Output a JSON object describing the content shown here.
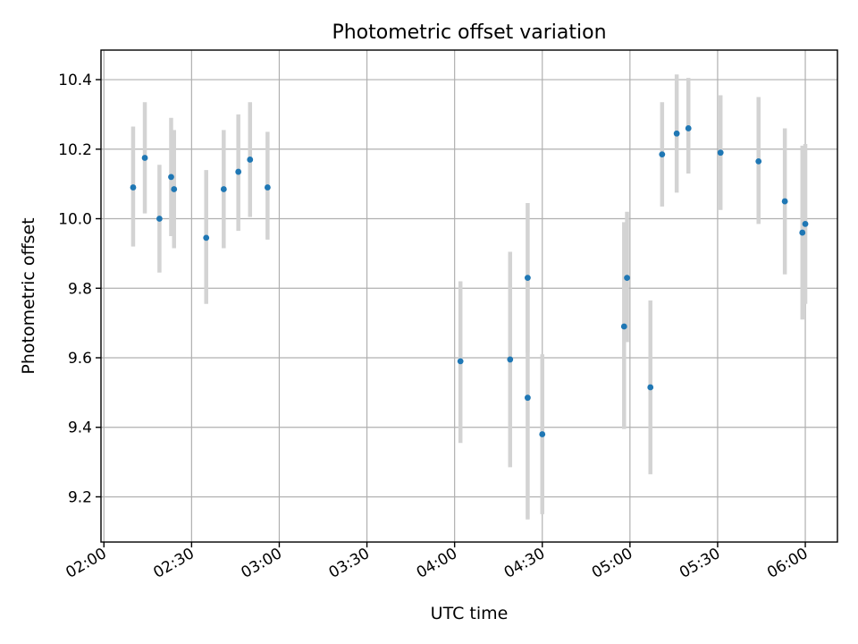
{
  "chart_data": {
    "type": "scatter",
    "title": "Photometric offset variation",
    "xlabel": "UTC time",
    "ylabel": "Photometric offset",
    "xlim": [
      "01:59",
      "06:11"
    ],
    "ylim": [
      9.07,
      10.485
    ],
    "x_ticks": [
      "02:00",
      "02:30",
      "03:00",
      "03:30",
      "04:00",
      "04:30",
      "05:00",
      "05:30",
      "06:00"
    ],
    "y_ticks": [
      9.2,
      9.4,
      9.6,
      9.8,
      10.0,
      10.2,
      10.4
    ],
    "grid": true,
    "colors": {
      "points": "#1f77b4",
      "errorbars": "#d3d3d3",
      "grid": "#b0b0b0"
    },
    "points": [
      {
        "x": "02:10",
        "y": 10.09,
        "lo": 9.92,
        "hi": 10.265
      },
      {
        "x": "02:14",
        "y": 10.175,
        "lo": 10.015,
        "hi": 10.335
      },
      {
        "x": "02:19",
        "y": 10.0,
        "lo": 9.845,
        "hi": 10.155
      },
      {
        "x": "02:23",
        "y": 10.12,
        "lo": 9.95,
        "hi": 10.29
      },
      {
        "x": "02:24",
        "y": 10.085,
        "lo": 9.915,
        "hi": 10.255
      },
      {
        "x": "02:35",
        "y": 9.945,
        "lo": 9.755,
        "hi": 10.14
      },
      {
        "x": "02:41",
        "y": 10.085,
        "lo": 9.915,
        "hi": 10.255
      },
      {
        "x": "02:46",
        "y": 10.135,
        "lo": 9.965,
        "hi": 10.3
      },
      {
        "x": "02:50",
        "y": 10.17,
        "lo": 10.005,
        "hi": 10.335
      },
      {
        "x": "02:56",
        "y": 10.09,
        "lo": 9.94,
        "hi": 10.25
      },
      {
        "x": "04:02",
        "y": 9.59,
        "lo": 9.355,
        "hi": 9.82
      },
      {
        "x": "04:19",
        "y": 9.595,
        "lo": 9.285,
        "hi": 9.905
      },
      {
        "x": "04:25",
        "y": 9.83,
        "lo": 9.615,
        "hi": 10.045
      },
      {
        "x": "04:25",
        "y": 9.485,
        "lo": 9.135,
        "hi": 9.835
      },
      {
        "x": "04:30",
        "y": 9.38,
        "lo": 9.15,
        "hi": 9.61
      },
      {
        "x": "04:58",
        "y": 9.69,
        "lo": 9.395,
        "hi": 9.99
      },
      {
        "x": "04:59",
        "y": 9.83,
        "lo": 9.645,
        "hi": 10.02
      },
      {
        "x": "05:07",
        "y": 9.515,
        "lo": 9.265,
        "hi": 9.765
      },
      {
        "x": "05:11",
        "y": 10.185,
        "lo": 10.035,
        "hi": 10.335
      },
      {
        "x": "05:16",
        "y": 10.245,
        "lo": 10.075,
        "hi": 10.415
      },
      {
        "x": "05:20",
        "y": 10.26,
        "lo": 10.13,
        "hi": 10.405
      },
      {
        "x": "05:31",
        "y": 10.19,
        "lo": 10.025,
        "hi": 10.355
      },
      {
        "x": "05:44",
        "y": 10.165,
        "lo": 9.985,
        "hi": 10.35
      },
      {
        "x": "05:53",
        "y": 10.05,
        "lo": 9.84,
        "hi": 10.26
      },
      {
        "x": "05:59",
        "y": 9.96,
        "lo": 9.71,
        "hi": 10.21
      },
      {
        "x": "06:00",
        "y": 9.985,
        "lo": 9.755,
        "hi": 10.215
      }
    ]
  }
}
